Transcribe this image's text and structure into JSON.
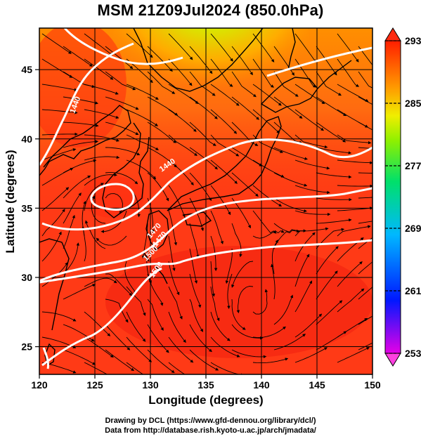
{
  "title": "MSM 21Z09Jul2024 (850.0hPa)",
  "map": {
    "xlabel": "Longitude (degrees)",
    "ylabel": "Latitude  (degrees)",
    "lon_range": [
      120,
      150
    ],
    "lat_range": [
      23,
      48
    ],
    "lon_ticks": [
      "120",
      "125",
      "130",
      "135",
      "140",
      "145",
      "150"
    ],
    "lat_ticks": [
      "25",
      "30",
      "35",
      "40",
      "45"
    ],
    "contour_labels": [
      "1440",
      "1440",
      "1470",
      "1470",
      "1500",
      "1500"
    ]
  },
  "colorbar": {
    "min": 253,
    "max": 293,
    "tick_labels": [
      "293",
      "285",
      "277",
      "269",
      "261",
      "253"
    ],
    "colors": [
      "#e600e6",
      "#0018ff",
      "#00b8ff",
      "#00e06a",
      "#8ef000",
      "#f0ee00",
      "#ff9a00",
      "#ff1e00"
    ]
  },
  "credits": {
    "line1": "Drawing by DCL (https://www.gfd-dennou.org/library/dcl/)",
    "line2": "Data from http://database.rish.kyoto-u.ac.jp/arch/jmadata/"
  }
}
